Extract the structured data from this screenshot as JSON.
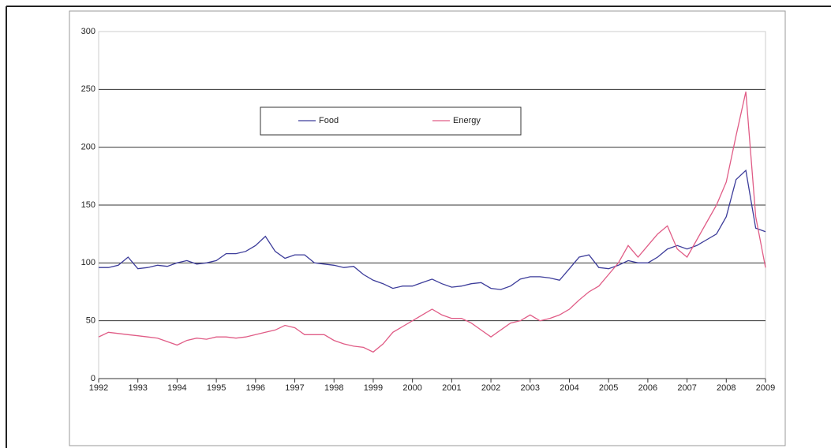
{
  "chart_data": {
    "type": "line",
    "x": [
      1992,
      1992.25,
      1992.5,
      1992.75,
      1993,
      1993.25,
      1993.5,
      1993.75,
      1994,
      1994.25,
      1994.5,
      1994.75,
      1995,
      1995.25,
      1995.5,
      1995.75,
      1996,
      1996.25,
      1996.5,
      1996.75,
      1997,
      1997.25,
      1997.5,
      1997.75,
      1998,
      1998.25,
      1998.5,
      1998.75,
      1999,
      1999.25,
      1999.5,
      1999.75,
      2000,
      2000.25,
      2000.5,
      2000.75,
      2001,
      2001.25,
      2001.5,
      2001.75,
      2002,
      2002.25,
      2002.5,
      2002.75,
      2003,
      2003.25,
      2003.5,
      2003.75,
      2004,
      2004.25,
      2004.5,
      2004.75,
      2005,
      2005.25,
      2005.5,
      2005.75,
      2006,
      2006.25,
      2006.5,
      2006.75,
      2007,
      2007.25,
      2007.5,
      2007.75,
      2008,
      2008.25,
      2008.5,
      2008.75,
      2009
    ],
    "series": [
      {
        "name": "Food",
        "color": "#3c3c9a",
        "values": [
          96,
          96,
          98,
          105,
          95,
          96,
          98,
          97,
          100,
          102,
          99,
          100,
          102,
          108,
          108,
          110,
          115,
          123,
          110,
          104,
          107,
          107,
          100,
          99,
          98,
          96,
          97,
          90,
          85,
          82,
          78,
          80,
          80,
          83,
          86,
          82,
          79,
          80,
          82,
          83,
          78,
          77,
          80,
          86,
          88,
          88,
          87,
          85,
          95,
          105,
          107,
          96,
          95,
          98,
          102,
          100,
          100,
          105,
          112,
          115,
          112,
          115,
          120,
          125,
          140,
          172,
          180,
          130,
          127
        ]
      },
      {
        "name": "Energy",
        "color": "#e05c86",
        "values": [
          36,
          40,
          39,
          38,
          37,
          36,
          35,
          32,
          29,
          33,
          35,
          34,
          36,
          36,
          35,
          36,
          38,
          40,
          42,
          46,
          44,
          38,
          38,
          38,
          33,
          30,
          28,
          27,
          23,
          30,
          40,
          45,
          50,
          55,
          60,
          55,
          52,
          52,
          48,
          42,
          36,
          42,
          48,
          50,
          55,
          50,
          52,
          55,
          60,
          68,
          75,
          80,
          90,
          100,
          115,
          105,
          115,
          125,
          132,
          112,
          105,
          120,
          135,
          150,
          170,
          210,
          248,
          140,
          96
        ]
      }
    ],
    "xlim": [
      1992,
      2009
    ],
    "xticks": [
      1992,
      1993,
      1994,
      1995,
      1996,
      1997,
      1998,
      1999,
      2000,
      2001,
      2002,
      2003,
      2004,
      2005,
      2006,
      2007,
      2008,
      2009
    ],
    "ylim": [
      0,
      300
    ],
    "yticks": [
      0,
      50,
      100,
      150,
      200,
      250,
      300
    ],
    "grid": true
  }
}
